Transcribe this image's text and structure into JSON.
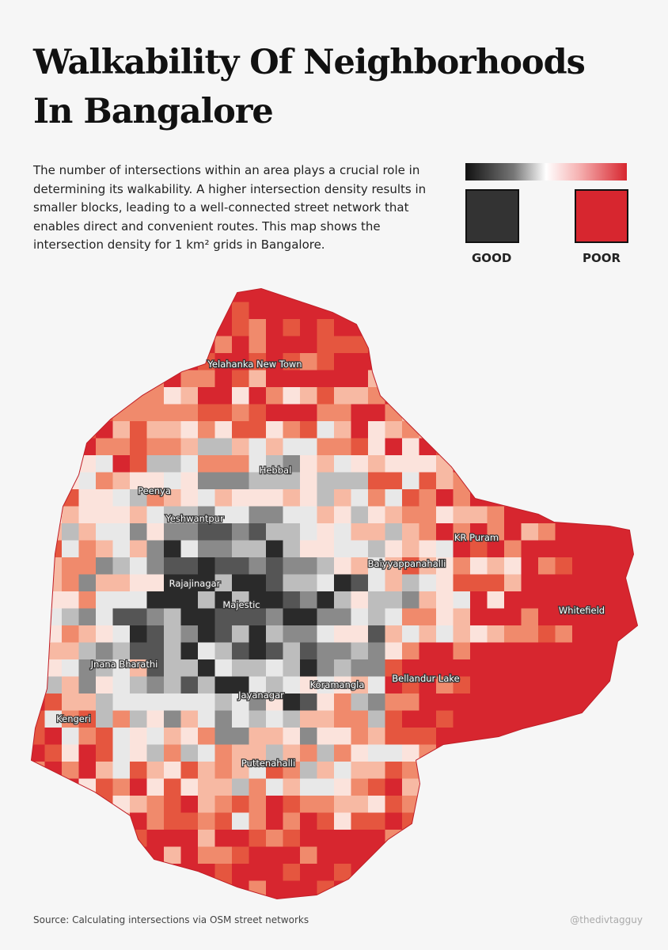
{
  "header": {
    "title": "Walkability Of Neighborhoods In Bangalore",
    "description": "The number of intersections within an area plays a crucial role in determining its walkability. A higher intersection density results in smaller blocks, leading to a well-connected street network that enables direct and convenient routes. This map shows the intersection density for 1 km² grids in Bangalore."
  },
  "legend": {
    "good": "GOOD",
    "poor": "POOR"
  },
  "places": [
    "Yelahanka New Town",
    "Hebbal",
    "Peenya",
    "Yeshwantpur",
    "KR Puram",
    "Baiyyappanahalli",
    "Rajajinagar",
    "Majestic",
    "Whitefield",
    "Jnana Bharathi",
    "Koramangla",
    "Bellandur Lake",
    "Jayanagar",
    "Kengeri",
    "Puttenahalli"
  ],
  "footer": {
    "source": "Source: Calculating  intersections via OSM street networks",
    "credit": "@thedivtagguy"
  }
}
